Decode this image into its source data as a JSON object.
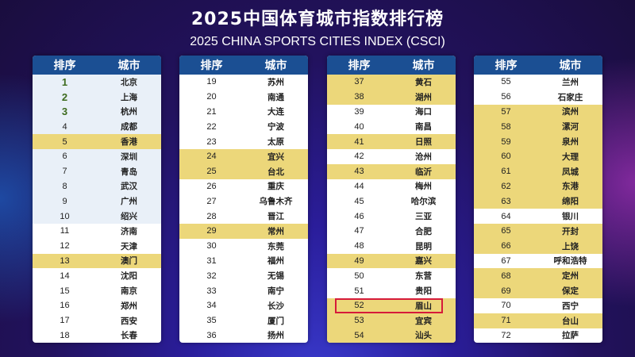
{
  "title": "2025中国体育城市指数排行榜",
  "subtitle": "2025 CHINA SPORTS CITIES INDEX (CSCI)",
  "header": {
    "rank": "排序",
    "city": "城市"
  },
  "colors": {
    "header": "#1b4f93",
    "highlight": "#ecd77a",
    "top10": "#e9f0f8",
    "marker": "#d61b3a",
    "top3_rank": "#3d6b1e"
  },
  "tables": [
    {
      "rows": [
        {
          "rank": "1",
          "city": "北京",
          "top10": true
        },
        {
          "rank": "2",
          "city": "上海",
          "top10": true
        },
        {
          "rank": "3",
          "city": "杭州",
          "top10": true
        },
        {
          "rank": "4",
          "city": "成都",
          "top10": true
        },
        {
          "rank": "5",
          "city": "香港",
          "highlight": true
        },
        {
          "rank": "6",
          "city": "深圳",
          "top10": true
        },
        {
          "rank": "7",
          "city": "青岛",
          "top10": true
        },
        {
          "rank": "8",
          "city": "武汉",
          "top10": true
        },
        {
          "rank": "9",
          "city": "广州",
          "top10": true
        },
        {
          "rank": "10",
          "city": "绍兴",
          "top10": true
        },
        {
          "rank": "11",
          "city": "济南"
        },
        {
          "rank": "12",
          "city": "天津"
        },
        {
          "rank": "13",
          "city": "澳门",
          "highlight": true
        },
        {
          "rank": "14",
          "city": "沈阳"
        },
        {
          "rank": "15",
          "city": "南京"
        },
        {
          "rank": "16",
          "city": "郑州"
        },
        {
          "rank": "17",
          "city": "西安"
        },
        {
          "rank": "18",
          "city": "长春"
        }
      ]
    },
    {
      "rows": [
        {
          "rank": "19",
          "city": "苏州"
        },
        {
          "rank": "20",
          "city": "南通"
        },
        {
          "rank": "21",
          "city": "大连"
        },
        {
          "rank": "22",
          "city": "宁波"
        },
        {
          "rank": "23",
          "city": "太原"
        },
        {
          "rank": "24",
          "city": "宜兴",
          "highlight": true
        },
        {
          "rank": "25",
          "city": "台北",
          "highlight": true
        },
        {
          "rank": "26",
          "city": "重庆"
        },
        {
          "rank": "27",
          "city": "乌鲁木齐"
        },
        {
          "rank": "28",
          "city": "晋江"
        },
        {
          "rank": "29",
          "city": "常州",
          "highlight": true
        },
        {
          "rank": "30",
          "city": "东莞"
        },
        {
          "rank": "31",
          "city": "福州"
        },
        {
          "rank": "32",
          "city": "无锡"
        },
        {
          "rank": "33",
          "city": "南宁"
        },
        {
          "rank": "34",
          "city": "长沙"
        },
        {
          "rank": "35",
          "city": "厦门"
        },
        {
          "rank": "36",
          "city": "扬州"
        }
      ]
    },
    {
      "rows": [
        {
          "rank": "37",
          "city": "黄石",
          "highlight": true
        },
        {
          "rank": "38",
          "city": "湖州",
          "highlight": true
        },
        {
          "rank": "39",
          "city": "海口"
        },
        {
          "rank": "40",
          "city": "南昌"
        },
        {
          "rank": "41",
          "city": "日照",
          "highlight": true
        },
        {
          "rank": "42",
          "city": "沧州"
        },
        {
          "rank": "43",
          "city": "临沂",
          "highlight": true
        },
        {
          "rank": "44",
          "city": "梅州"
        },
        {
          "rank": "45",
          "city": "哈尔滨"
        },
        {
          "rank": "46",
          "city": "三亚"
        },
        {
          "rank": "47",
          "city": "合肥"
        },
        {
          "rank": "48",
          "city": "昆明"
        },
        {
          "rank": "49",
          "city": "嘉兴",
          "highlight": true
        },
        {
          "rank": "50",
          "city": "东营"
        },
        {
          "rank": "51",
          "city": "贵阳"
        },
        {
          "rank": "52",
          "city": "眉山",
          "highlight": true,
          "marked": true
        },
        {
          "rank": "53",
          "city": "宜宾",
          "highlight": true
        },
        {
          "rank": "54",
          "city": "汕头",
          "highlight": true
        }
      ]
    },
    {
      "rows": [
        {
          "rank": "55",
          "city": "兰州"
        },
        {
          "rank": "56",
          "city": "石家庄"
        },
        {
          "rank": "57",
          "city": "滨州",
          "highlight": true
        },
        {
          "rank": "58",
          "city": "漯河",
          "highlight": true
        },
        {
          "rank": "59",
          "city": "泉州",
          "highlight": true
        },
        {
          "rank": "60",
          "city": "大理",
          "highlight": true
        },
        {
          "rank": "61",
          "city": "凤城",
          "highlight": true
        },
        {
          "rank": "62",
          "city": "东港",
          "highlight": true
        },
        {
          "rank": "63",
          "city": "绵阳",
          "highlight": true
        },
        {
          "rank": "64",
          "city": "银川"
        },
        {
          "rank": "65",
          "city": "开封",
          "highlight": true
        },
        {
          "rank": "66",
          "city": "上饶",
          "highlight": true
        },
        {
          "rank": "67",
          "city": "呼和浩特"
        },
        {
          "rank": "68",
          "city": "定州",
          "highlight": true
        },
        {
          "rank": "69",
          "city": "保定",
          "highlight": true
        },
        {
          "rank": "70",
          "city": "西宁"
        },
        {
          "rank": "71",
          "city": "台山",
          "highlight": true
        },
        {
          "rank": "72",
          "city": "拉萨"
        }
      ]
    }
  ]
}
